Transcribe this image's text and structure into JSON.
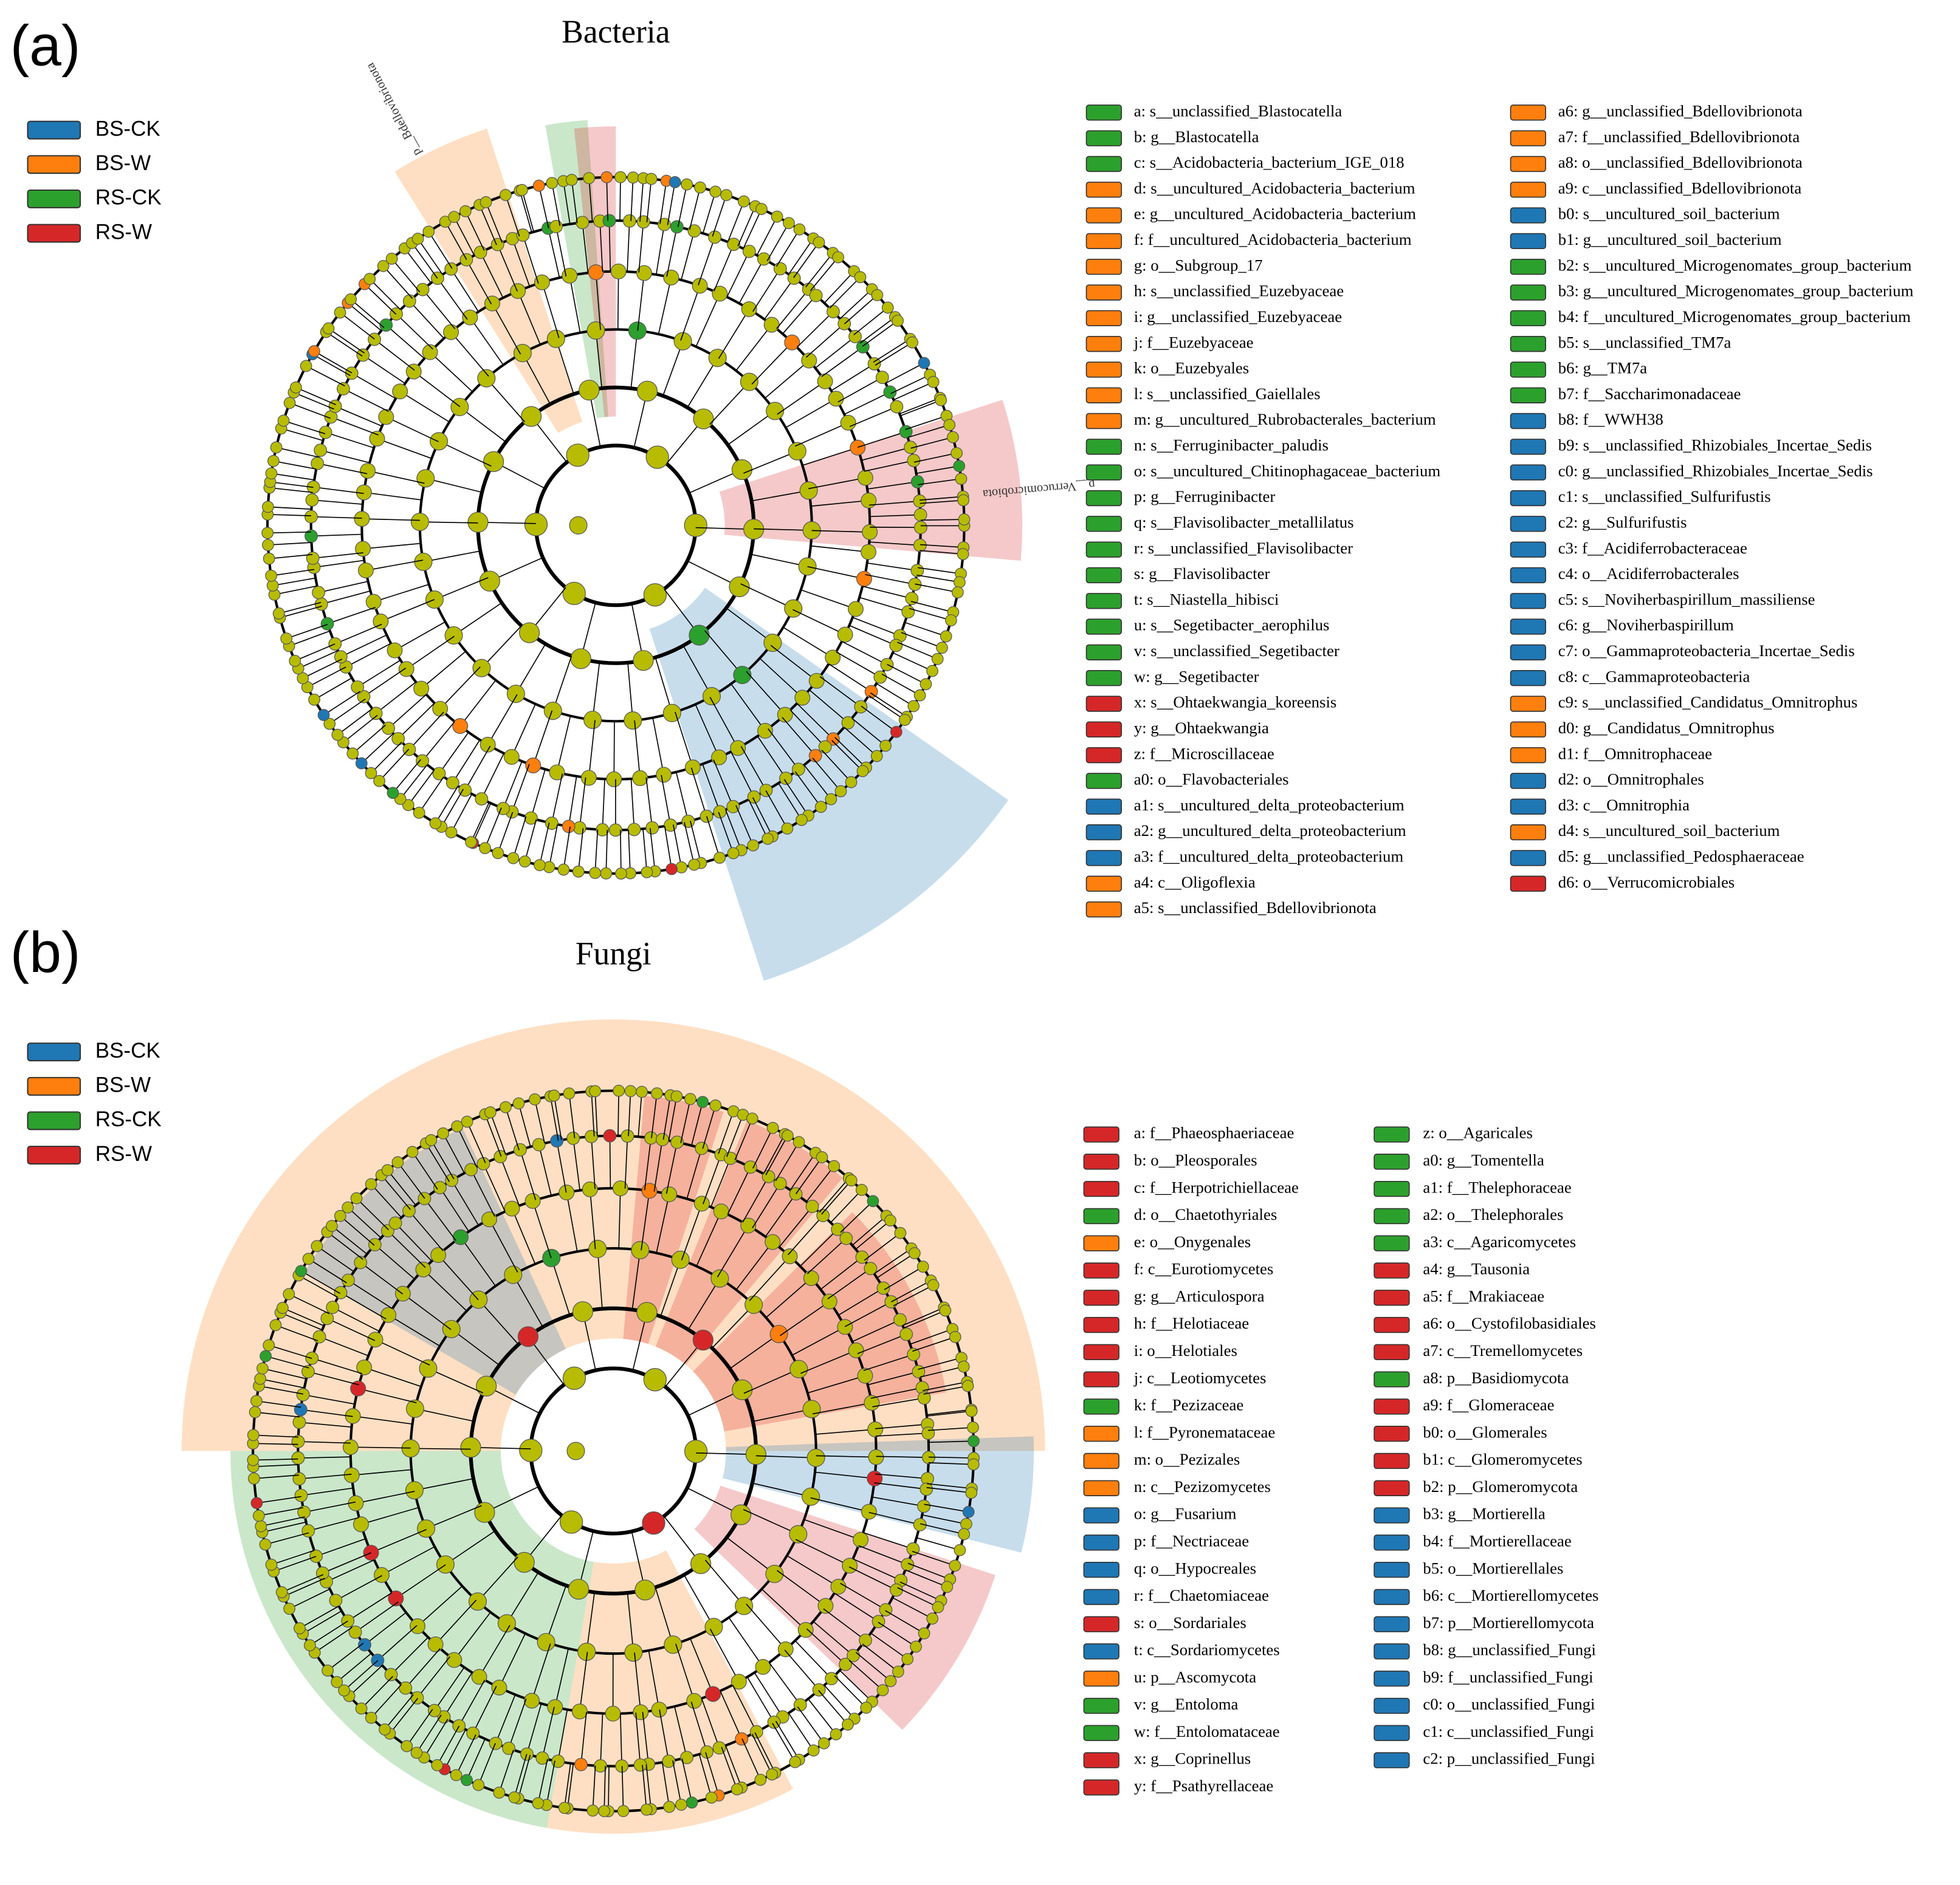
{
  "panels": [
    {
      "label": "(a)",
      "title": "Bacteria",
      "groups": [
        {
          "name": "BS-CK",
          "color": "#1f77b4"
        },
        {
          "name": "BS-W",
          "color": "#ff7f0e"
        },
        {
          "name": "RS-CK",
          "color": "#2ca02c"
        },
        {
          "name": "RS-W",
          "color": "#d62728"
        }
      ],
      "annotations": [
        "p__Bdellovibrionota",
        "p__Verrucomicrobiota"
      ],
      "taxa": [
        {
          "label": "a: s__unclassified_Blastocatella",
          "group": 2
        },
        {
          "label": "b: g__Blastocatella",
          "group": 2
        },
        {
          "label": "c: s__Acidobacteria_bacterium_IGE_018",
          "group": 2
        },
        {
          "label": "d: s__uncultured_Acidobacteria_bacterium",
          "group": 1
        },
        {
          "label": "e: g__uncultured_Acidobacteria_bacterium",
          "group": 1
        },
        {
          "label": "f: f__uncultured_Acidobacteria_bacterium",
          "group": 1
        },
        {
          "label": "g: o__Subgroup_17",
          "group": 1
        },
        {
          "label": "h: s__unclassified_Euzebyaceae",
          "group": 1
        },
        {
          "label": "i: g__unclassified_Euzebyaceae",
          "group": 1
        },
        {
          "label": "j: f__Euzebyaceae",
          "group": 1
        },
        {
          "label": "k: o__Euzebyales",
          "group": 1
        },
        {
          "label": "l: s__unclassified_Gaiellales",
          "group": 1
        },
        {
          "label": "m: g__uncultured_Rubrobacterales_bacterium",
          "group": 1
        },
        {
          "label": "n: s__Ferruginibacter_paludis",
          "group": 2
        },
        {
          "label": "o: s__uncultured_Chitinophagaceae_bacterium",
          "group": 2
        },
        {
          "label": "p: g__Ferruginibacter",
          "group": 2
        },
        {
          "label": "q: s__Flavisolibacter_metallilatus",
          "group": 2
        },
        {
          "label": "r: s__unclassified_Flavisolibacter",
          "group": 2
        },
        {
          "label": "s: g__Flavisolibacter",
          "group": 2
        },
        {
          "label": "t: s__Niastella_hibisci",
          "group": 2
        },
        {
          "label": "u: s__Segetibacter_aerophilus",
          "group": 2
        },
        {
          "label": "v: s__unclassified_Segetibacter",
          "group": 2
        },
        {
          "label": "w: g__Segetibacter",
          "group": 2
        },
        {
          "label": "x: s__Ohtaekwangia_koreensis",
          "group": 3
        },
        {
          "label": "y: g__Ohtaekwangia",
          "group": 3
        },
        {
          "label": "z: f__Microscillaceae",
          "group": 3
        },
        {
          "label": "a0: o__Flavobacteriales",
          "group": 2
        },
        {
          "label": "a1: s__uncultured_delta_proteobacterium",
          "group": 0
        },
        {
          "label": "a2: g__uncultured_delta_proteobacterium",
          "group": 0
        },
        {
          "label": "a3: f__uncultured_delta_proteobacterium",
          "group": 0
        },
        {
          "label": "a4: c__Oligoflexia",
          "group": 1
        },
        {
          "label": "a5: s__unclassified_Bdellovibrionota",
          "group": 1
        },
        {
          "label": "a6: g__unclassified_Bdellovibrionota",
          "group": 1
        },
        {
          "label": "a7: f__unclassified_Bdellovibrionota",
          "group": 1
        },
        {
          "label": "a8: o__unclassified_Bdellovibrionota",
          "group": 1
        },
        {
          "label": "a9: c__unclassified_Bdellovibrionota",
          "group": 1
        },
        {
          "label": "b0: s__uncultured_soil_bacterium",
          "group": 0
        },
        {
          "label": "b1: g__uncultured_soil_bacterium",
          "group": 0
        },
        {
          "label": "b2: s__uncultured_Microgenomates_group_bacterium",
          "group": 2
        },
        {
          "label": "b3: g__uncultured_Microgenomates_group_bacterium",
          "group": 2
        },
        {
          "label": "b4: f__uncultured_Microgenomates_group_bacterium",
          "group": 2
        },
        {
          "label": "b5: s__unclassified_TM7a",
          "group": 2
        },
        {
          "label": "b6: g__TM7a",
          "group": 2
        },
        {
          "label": "b7: f__Saccharimonadaceae",
          "group": 2
        },
        {
          "label": "b8: f__WWH38",
          "group": 0
        },
        {
          "label": "b9: s__unclassified_Rhizobiales_Incertae_Sedis",
          "group": 0
        },
        {
          "label": "c0: g__unclassified_Rhizobiales_Incertae_Sedis",
          "group": 0
        },
        {
          "label": "c1: s__unclassified_Sulfurifustis",
          "group": 0
        },
        {
          "label": "c2: g__Sulfurifustis",
          "group": 0
        },
        {
          "label": "c3: f__Acidiferrobacteraceae",
          "group": 0
        },
        {
          "label": "c4: o__Acidiferrobacterales",
          "group": 0
        },
        {
          "label": "c5: s__Noviherbaspirillum_massiliense",
          "group": 0
        },
        {
          "label": "c6: g__Noviherbaspirillum",
          "group": 0
        },
        {
          "label": "c7: o__Gammaproteobacteria_Incertae_Sedis",
          "group": 0
        },
        {
          "label": "c8: c__Gammaproteobacteria",
          "group": 0
        },
        {
          "label": "c9: s__unclassified_Candidatus_Omnitrophus",
          "group": 1
        },
        {
          "label": "d0: g__Candidatus_Omnitrophus",
          "group": 1
        },
        {
          "label": "d1: f__Omnitrophaceae",
          "group": 1
        },
        {
          "label": "d2: o__Omnitrophales",
          "group": 0
        },
        {
          "label": "d3: c__Omnitrophia",
          "group": 0
        },
        {
          "label": "d4: s__uncultured_soil_bacterium",
          "group": 1
        },
        {
          "label": "d5: g__unclassified_Pedosphaeraceae",
          "group": 0
        },
        {
          "label": "d6: o__Verrucomicrobiales",
          "group": 3
        }
      ]
    },
    {
      "label": "(b)",
      "title": "Fungi",
      "groups": [
        {
          "name": "BS-CK",
          "color": "#1f77b4"
        },
        {
          "name": "BS-W",
          "color": "#ff7f0e"
        },
        {
          "name": "RS-CK",
          "color": "#2ca02c"
        },
        {
          "name": "RS-W",
          "color": "#d62728"
        }
      ],
      "annotations": [],
      "taxa": [
        {
          "label": "a: f__Phaeosphaeriaceae",
          "group": 3
        },
        {
          "label": "b: o__Pleosporales",
          "group": 3
        },
        {
          "label": "c: f__Herpotrichiellaceae",
          "group": 3
        },
        {
          "label": "d: o__Chaetothyriales",
          "group": 2
        },
        {
          "label": "e: o__Onygenales",
          "group": 1
        },
        {
          "label": "f: c__Eurotiomycetes",
          "group": 3
        },
        {
          "label": "g: g__Articulospora",
          "group": 3
        },
        {
          "label": "h: f__Helotiaceae",
          "group": 3
        },
        {
          "label": "i: o__Helotiales",
          "group": 3
        },
        {
          "label": "j: c__Leotiomycetes",
          "group": 3
        },
        {
          "label": "k: f__Pezizaceae",
          "group": 2
        },
        {
          "label": "l: f__Pyronemataceae",
          "group": 1
        },
        {
          "label": "m: o__Pezizales",
          "group": 1
        },
        {
          "label": "n: c__Pezizomycetes",
          "group": 1
        },
        {
          "label": "o: g__Fusarium",
          "group": 0
        },
        {
          "label": "p: f__Nectriaceae",
          "group": 0
        },
        {
          "label": "q: o__Hypocreales",
          "group": 0
        },
        {
          "label": "r: f__Chaetomiaceae",
          "group": 0
        },
        {
          "label": "s: o__Sordariales",
          "group": 3
        },
        {
          "label": "t: c__Sordariomycetes",
          "group": 0
        },
        {
          "label": "u: p__Ascomycota",
          "group": 1
        },
        {
          "label": "v: g__Entoloma",
          "group": 2
        },
        {
          "label": "w: f__Entolomataceae",
          "group": 2
        },
        {
          "label": "x: g__Coprinellus",
          "group": 3
        },
        {
          "label": "y: f__Psathyrellaceae",
          "group": 3
        },
        {
          "label": "z: o__Agaricales",
          "group": 2
        },
        {
          "label": "a0: g__Tomentella",
          "group": 2
        },
        {
          "label": "a1: f__Thelephoraceae",
          "group": 2
        },
        {
          "label": "a2: o__Thelephorales",
          "group": 2
        },
        {
          "label": "a3: c__Agaricomycetes",
          "group": 2
        },
        {
          "label": "a4: g__Tausonia",
          "group": 3
        },
        {
          "label": "a5: f__Mrakiaceae",
          "group": 3
        },
        {
          "label": "a6: o__Cystofilobasidiales",
          "group": 3
        },
        {
          "label": "a7: c__Tremellomycetes",
          "group": 3
        },
        {
          "label": "a8: p__Basidiomycota",
          "group": 2
        },
        {
          "label": "a9: f__Glomeraceae",
          "group": 3
        },
        {
          "label": "b0: o__Glomerales",
          "group": 3
        },
        {
          "label": "b1: c__Glomeromycetes",
          "group": 3
        },
        {
          "label": "b2: p__Glomeromycota",
          "group": 3
        },
        {
          "label": "b3: g__Mortierella",
          "group": 0
        },
        {
          "label": "b4: f__Mortierellaceae",
          "group": 0
        },
        {
          "label": "b5: o__Mortierellales",
          "group": 0
        },
        {
          "label": "b6: c__Mortierellomycetes",
          "group": 0
        },
        {
          "label": "b7: p__Mortierellomycota",
          "group": 0
        },
        {
          "label": "b8: g__unclassified_Fungi",
          "group": 0
        },
        {
          "label": "b9: f__unclassified_Fungi",
          "group": 0
        },
        {
          "label": "c0: o__unclassified_Fungi",
          "group": 0
        },
        {
          "label": "c1: c__unclassified_Fungi",
          "group": 0
        },
        {
          "label": "c2: p__unclassified_Fungi",
          "group": 0
        }
      ]
    }
  ]
}
